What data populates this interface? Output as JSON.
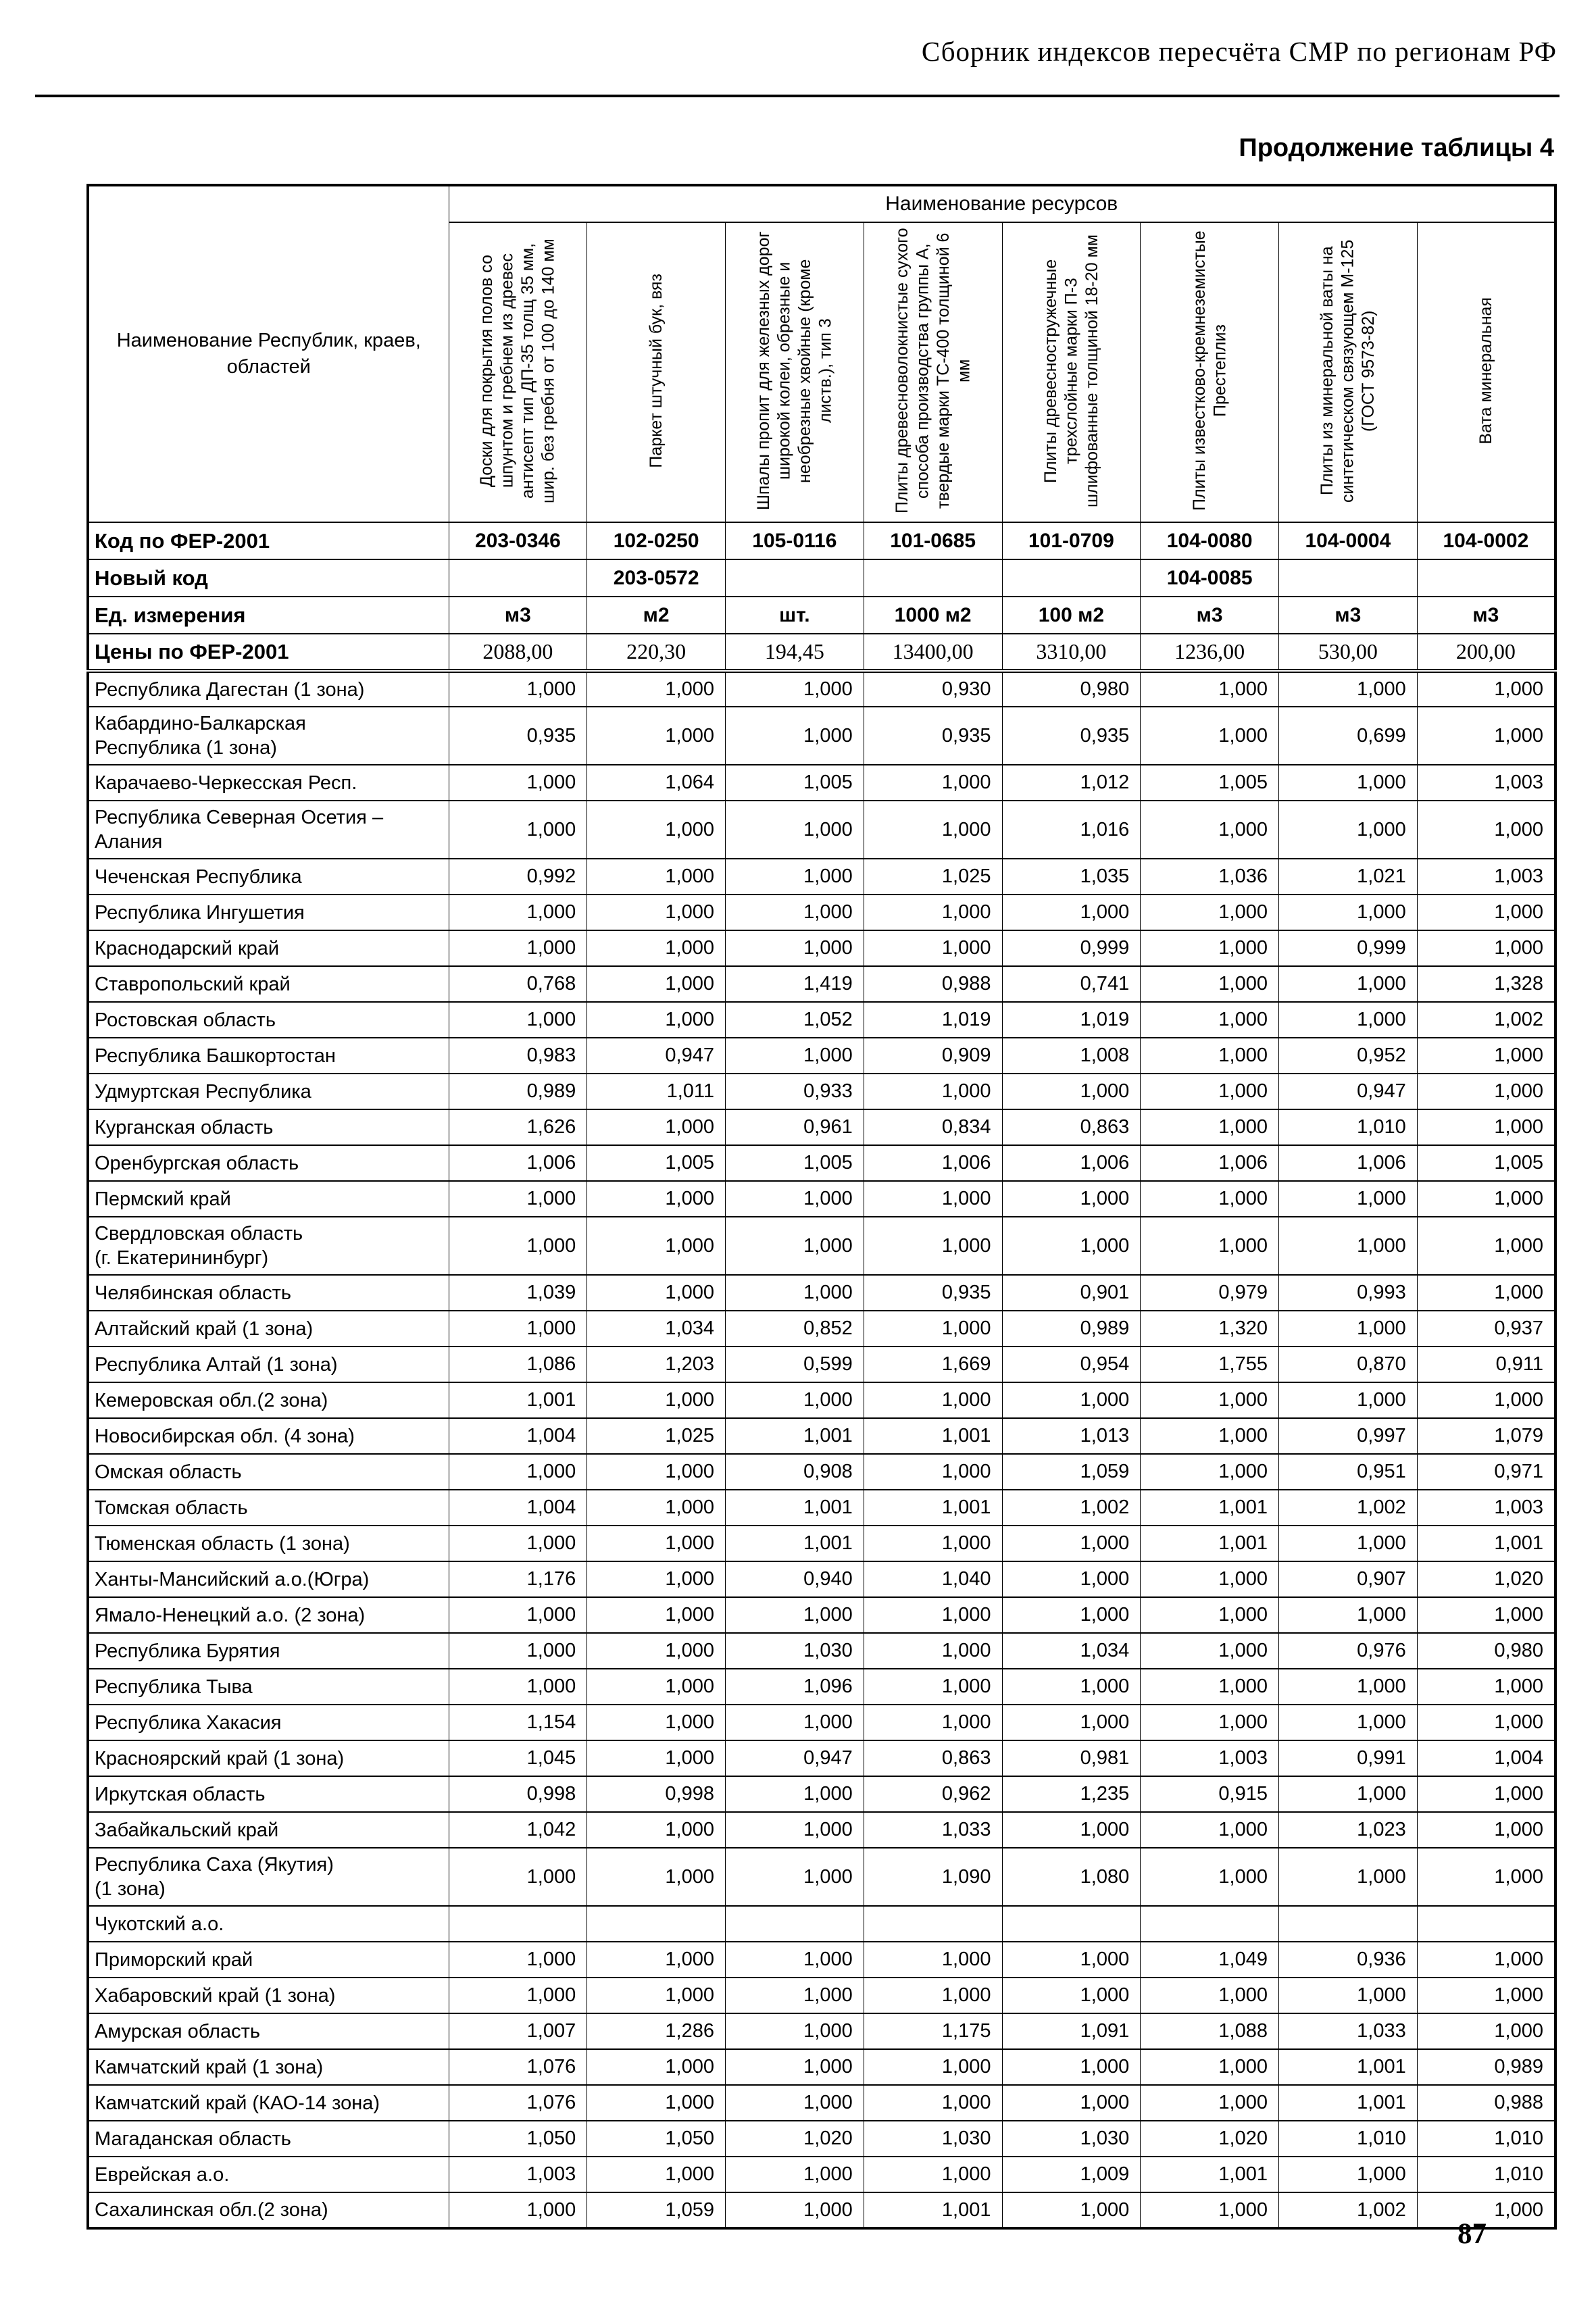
{
  "page": {
    "header_title": "Сборник индексов пересчёта СМР  по регионам РФ",
    "table_caption": "Продолжение таблицы 4",
    "page_number": "87",
    "colors": {
      "ink": "#000000",
      "paper": "#ffffff"
    }
  },
  "table": {
    "resources_group_header": "Наименование ресурсов",
    "name_column_header": "Наименование Республик, краев,\nобластей",
    "resource_columns": [
      "Доски для покрытия полов со шпунтом и гребнем из древес антисепт тип ДП-35 толщ 35 мм, шир. без гребня от 100 до 140 мм",
      "Паркет штучный бук, вяз",
      "Шпалы пропит для железных дорог широкой колеи, обрезные и необрезные хвойные (кроме листв.), тип 3",
      "Плиты древесноволокнистые сухого способа производства группы А, твердые марки ТС-400 толщиной 6 мм",
      "Плиты древесностружечные трехслойные марки П-3 шлифованные толщиной 18-20 мм",
      "Плиты известково-кремнеземистые Престеплиз",
      "Плиты из минеральной ваты на синтетическом связующем М-125 (ГОСТ 9573-82)",
      "Вата минеральная"
    ],
    "meta_rows": [
      {
        "label": "Код по ФЕР-2001",
        "values": [
          "203-0346",
          "102-0250",
          "105-0116",
          "101-0685",
          "101-0709",
          "104-0080",
          "104-0004",
          "104-0002"
        ]
      },
      {
        "label": "Новый код",
        "values": [
          "",
          "203-0572",
          "",
          "",
          "",
          "104-0085",
          "",
          ""
        ]
      },
      {
        "label": "Ед. измерения",
        "values": [
          "м3",
          "м2",
          "шт.",
          "1000 м2",
          "100 м2",
          "м3",
          "м3",
          "м3"
        ]
      },
      {
        "label": "Цены по ФЕР-2001",
        "values": [
          "2088,00",
          "220,30",
          "194,45",
          "13400,00",
          "3310,00",
          "1236,00",
          "530,00",
          "200,00"
        ]
      }
    ],
    "regions": [
      {
        "name": "Республика Дагестан (1 зона)",
        "values": [
          "1,000",
          "1,000",
          "1,000",
          "0,930",
          "0,980",
          "1,000",
          "1,000",
          "1,000"
        ]
      },
      {
        "name": "Кабардино-Балкарская\nРеспублика (1 зона)",
        "values": [
          "0,935",
          "1,000",
          "1,000",
          "0,935",
          "0,935",
          "1,000",
          "0,699",
          "1,000"
        ]
      },
      {
        "name": "Карачаево-Черкесская Респ.",
        "values": [
          "1,000",
          "1,064",
          "1,005",
          "1,000",
          "1,012",
          "1,005",
          "1,000",
          "1,003"
        ]
      },
      {
        "name": "Республика Северная Осетия –\nАлания",
        "values": [
          "1,000",
          "1,000",
          "1,000",
          "1,000",
          "1,016",
          "1,000",
          "1,000",
          "1,000"
        ]
      },
      {
        "name": "Чеченская Республика",
        "values": [
          "0,992",
          "1,000",
          "1,000",
          "1,025",
          "1,035",
          "1,036",
          "1,021",
          "1,003"
        ]
      },
      {
        "name": "Республика Ингушетия",
        "values": [
          "1,000",
          "1,000",
          "1,000",
          "1,000",
          "1,000",
          "1,000",
          "1,000",
          "1,000"
        ]
      },
      {
        "name": "Краснодарский край",
        "values": [
          "1,000",
          "1,000",
          "1,000",
          "1,000",
          "0,999",
          "1,000",
          "0,999",
          "1,000"
        ]
      },
      {
        "name": "Ставропольский край",
        "values": [
          "0,768",
          "1,000",
          "1,419",
          "0,988",
          "0,741",
          "1,000",
          "1,000",
          "1,328"
        ]
      },
      {
        "name": "Ростовская область",
        "values": [
          "1,000",
          "1,000",
          "1,052",
          "1,019",
          "1,019",
          "1,000",
          "1,000",
          "1,002"
        ]
      },
      {
        "name": "Республика Башкортостан",
        "values": [
          "0,983",
          "0,947",
          "1,000",
          "0,909",
          "1,008",
          "1,000",
          "0,952",
          "1,000"
        ]
      },
      {
        "name": "Удмуртская Республика",
        "values": [
          "0,989",
          "1,011",
          "0,933",
          "1,000",
          "1,000",
          "1,000",
          "0,947",
          "1,000"
        ]
      },
      {
        "name": "Курганская область",
        "values": [
          "1,626",
          "1,000",
          "0,961",
          "0,834",
          "0,863",
          "1,000",
          "1,010",
          "1,000"
        ]
      },
      {
        "name": "Оренбургская область",
        "values": [
          "1,006",
          "1,005",
          "1,005",
          "1,006",
          "1,006",
          "1,006",
          "1,006",
          "1,005"
        ]
      },
      {
        "name": "Пермский край",
        "values": [
          "1,000",
          "1,000",
          "1,000",
          "1,000",
          "1,000",
          "1,000",
          "1,000",
          "1,000"
        ]
      },
      {
        "name": "Свердловская область\n(г. Екатерининбург)",
        "values": [
          "1,000",
          "1,000",
          "1,000",
          "1,000",
          "1,000",
          "1,000",
          "1,000",
          "1,000"
        ]
      },
      {
        "name": "Челябинская область",
        "values": [
          "1,039",
          "1,000",
          "1,000",
          "0,935",
          "0,901",
          "0,979",
          "0,993",
          "1,000"
        ]
      },
      {
        "name": "Алтайский край (1 зона)",
        "values": [
          "1,000",
          "1,034",
          "0,852",
          "1,000",
          "0,989",
          "1,320",
          "1,000",
          "0,937"
        ]
      },
      {
        "name": "Республика Алтай (1 зона)",
        "values": [
          "1,086",
          "1,203",
          "0,599",
          "1,669",
          "0,954",
          "1,755",
          "0,870",
          "0,911"
        ]
      },
      {
        "name": "Кемеровская обл.(2 зона)",
        "values": [
          "1,001",
          "1,000",
          "1,000",
          "1,000",
          "1,000",
          "1,000",
          "1,000",
          "1,000"
        ]
      },
      {
        "name": "Новосибирская обл. (4 зона)",
        "values": [
          "1,004",
          "1,025",
          "1,001",
          "1,001",
          "1,013",
          "1,000",
          "0,997",
          "1,079"
        ]
      },
      {
        "name": "Омская область",
        "values": [
          "1,000",
          "1,000",
          "0,908",
          "1,000",
          "1,059",
          "1,000",
          "0,951",
          "0,971"
        ]
      },
      {
        "name": "Томская область",
        "values": [
          "1,004",
          "1,000",
          "1,001",
          "1,001",
          "1,002",
          "1,001",
          "1,002",
          "1,003"
        ]
      },
      {
        "name": "Тюменская область (1 зона)",
        "values": [
          "1,000",
          "1,000",
          "1,001",
          "1,000",
          "1,000",
          "1,001",
          "1,000",
          "1,001"
        ]
      },
      {
        "name": "Ханты-Мансийский а.о.(Югра)",
        "values": [
          "1,176",
          "1,000",
          "0,940",
          "1,040",
          "1,000",
          "1,000",
          "0,907",
          "1,020"
        ]
      },
      {
        "name": "Ямало-Ненецкий а.о. (2 зона)",
        "values": [
          "1,000",
          "1,000",
          "1,000",
          "1,000",
          "1,000",
          "1,000",
          "1,000",
          "1,000"
        ]
      },
      {
        "name": "Республика Бурятия",
        "values": [
          "1,000",
          "1,000",
          "1,030",
          "1,000",
          "1,034",
          "1,000",
          "0,976",
          "0,980"
        ]
      },
      {
        "name": "Республика Тыва",
        "values": [
          "1,000",
          "1,000",
          "1,096",
          "1,000",
          "1,000",
          "1,000",
          "1,000",
          "1,000"
        ]
      },
      {
        "name": "Республика Хакасия",
        "values": [
          "1,154",
          "1,000",
          "1,000",
          "1,000",
          "1,000",
          "1,000",
          "1,000",
          "1,000"
        ]
      },
      {
        "name": "Красноярский край (1 зона)",
        "values": [
          "1,045",
          "1,000",
          "0,947",
          "0,863",
          "0,981",
          "1,003",
          "0,991",
          "1,004"
        ]
      },
      {
        "name": "Иркутская область",
        "values": [
          "0,998",
          "0,998",
          "1,000",
          "0,962",
          "1,235",
          "0,915",
          "1,000",
          "1,000"
        ]
      },
      {
        "name": "Забайкальский край",
        "values": [
          "1,042",
          "1,000",
          "1,000",
          "1,033",
          "1,000",
          "1,000",
          "1,023",
          "1,000"
        ]
      },
      {
        "name": "Республика Саха (Якутия)\n(1 зона)",
        "values": [
          "1,000",
          "1,000",
          "1,000",
          "1,090",
          "1,080",
          "1,000",
          "1,000",
          "1,000"
        ]
      },
      {
        "name": "Чукотский а.о.",
        "values": [
          "",
          "",
          "",
          "",
          "",
          "",
          "",
          ""
        ]
      },
      {
        "name": "Приморский край",
        "values": [
          "1,000",
          "1,000",
          "1,000",
          "1,000",
          "1,000",
          "1,049",
          "0,936",
          "1,000"
        ]
      },
      {
        "name": "Хабаровский край (1 зона)",
        "values": [
          "1,000",
          "1,000",
          "1,000",
          "1,000",
          "1,000",
          "1,000",
          "1,000",
          "1,000"
        ]
      },
      {
        "name": "Амурская область",
        "values": [
          "1,007",
          "1,286",
          "1,000",
          "1,175",
          "1,091",
          "1,088",
          "1,033",
          "1,000"
        ]
      },
      {
        "name": "Камчатский край (1 зона)",
        "values": [
          "1,076",
          "1,000",
          "1,000",
          "1,000",
          "1,000",
          "1,000",
          "1,001",
          "0,989"
        ]
      },
      {
        "name": "Камчатский край (КАО-14 зона)",
        "values": [
          "1,076",
          "1,000",
          "1,000",
          "1,000",
          "1,000",
          "1,000",
          "1,001",
          "0,988"
        ]
      },
      {
        "name": "Магаданская область",
        "values": [
          "1,050",
          "1,050",
          "1,020",
          "1,030",
          "1,030",
          "1,020",
          "1,010",
          "1,010"
        ]
      },
      {
        "name": "Еврейская а.о.",
        "values": [
          "1,003",
          "1,000",
          "1,000",
          "1,000",
          "1,009",
          "1,001",
          "1,000",
          "1,010"
        ]
      },
      {
        "name": "Сахалинская обл.(2 зона)",
        "values": [
          "1,000",
          "1,059",
          "1,000",
          "1,001",
          "1,000",
          "1,000",
          "1,002",
          "1,000"
        ]
      }
    ]
  }
}
